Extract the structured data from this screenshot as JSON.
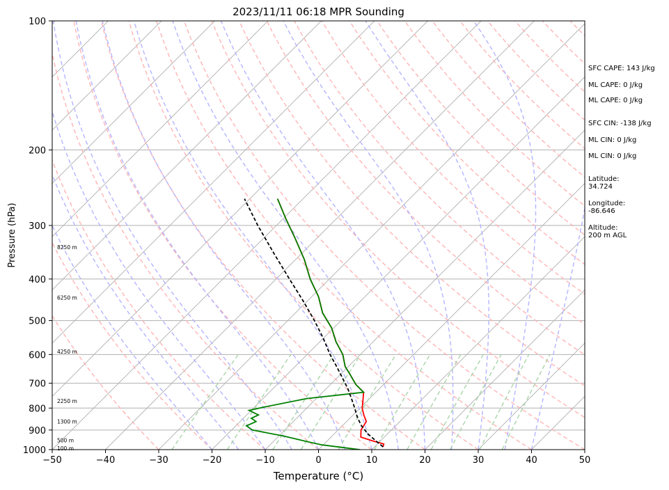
{
  "chart_data": {
    "type": "skew-t log-p sounding",
    "title": "2023/11/11 06:18 MPR Sounding",
    "xlabel": "Temperature (°C)",
    "ylabel": "Pressure (hPa)",
    "xlim": [
      -50,
      50
    ],
    "ylim": [
      1000,
      100
    ],
    "y_scale": "log",
    "x_ticks": [
      "−50",
      "−40",
      "−30",
      "−20",
      "−10",
      "0",
      "10",
      "20",
      "30",
      "40",
      "50"
    ],
    "y_ticks": [
      "100",
      "200",
      "300",
      "400",
      "500",
      "600",
      "700",
      "800",
      "900",
      "1000"
    ],
    "height_labels": [
      {
        "text": "100 m",
        "p": 993
      },
      {
        "text": "500 m",
        "p": 950
      },
      {
        "text": "1300 m",
        "p": 860
      },
      {
        "text": "2250 m",
        "p": 770
      },
      {
        "text": "4250 m",
        "p": 590
      },
      {
        "text": "6250 m",
        "p": 442
      },
      {
        "text": "8250 m",
        "p": 337
      }
    ],
    "series": [
      {
        "name": "Temperature",
        "color": "#ff0000",
        "points": [
          {
            "p": 985,
            "t": 11.6
          },
          {
            "p": 970,
            "t": 11.2
          },
          {
            "p": 955,
            "t": 8.7
          },
          {
            "p": 935,
            "t": 5.6
          },
          {
            "p": 900,
            "t": 4.3
          },
          {
            "p": 860,
            "t": 3.7
          },
          {
            "p": 830,
            "t": 2.0
          },
          {
            "p": 800,
            "t": 0.4
          },
          {
            "p": 770,
            "t": -0.8
          },
          {
            "p": 735,
            "t": -2.3
          },
          {
            "p": 705,
            "t": -5.2
          },
          {
            "p": 670,
            "t": -8.0
          },
          {
            "p": 640,
            "t": -10.6
          },
          {
            "p": 600,
            "t": -13.3
          },
          {
            "p": 560,
            "t": -17.0
          },
          {
            "p": 520,
            "t": -20.4
          },
          {
            "p": 480,
            "t": -24.9
          },
          {
            "p": 440,
            "t": -28.7
          },
          {
            "p": 400,
            "t": -33.6
          },
          {
            "p": 360,
            "t": -38.4
          },
          {
            "p": 320,
            "t": -44.3
          },
          {
            "p": 290,
            "t": -49.4
          },
          {
            "p": 260,
            "t": -54.8
          }
        ]
      },
      {
        "name": "Dewpoint",
        "color": "#008000",
        "points": [
          {
            "p": 1000,
            "t": 7.8
          },
          {
            "p": 990,
            "t": 4.6
          },
          {
            "p": 975,
            "t": -0.2
          },
          {
            "p": 960,
            "t": -3.2
          },
          {
            "p": 930,
            "t": -9.0
          },
          {
            "p": 900,
            "t": -16.1
          },
          {
            "p": 880,
            "t": -18.0
          },
          {
            "p": 860,
            "t": -17.0
          },
          {
            "p": 845,
            "t": -18.5
          },
          {
            "p": 830,
            "t": -17.8
          },
          {
            "p": 810,
            "t": -20.4
          },
          {
            "p": 795,
            "t": -18.1
          },
          {
            "p": 760,
            "t": -11.8
          },
          {
            "p": 735,
            "t": -2.3
          },
          {
            "p": 705,
            "t": -5.2
          },
          {
            "p": 670,
            "t": -8.0
          },
          {
            "p": 640,
            "t": -10.6
          },
          {
            "p": 600,
            "t": -13.3
          },
          {
            "p": 560,
            "t": -17.0
          },
          {
            "p": 520,
            "t": -20.4
          },
          {
            "p": 480,
            "t": -24.9
          },
          {
            "p": 440,
            "t": -28.7
          },
          {
            "p": 400,
            "t": -33.6
          },
          {
            "p": 360,
            "t": -38.4
          },
          {
            "p": 320,
            "t": -44.3
          },
          {
            "p": 290,
            "t": -49.4
          },
          {
            "p": 260,
            "t": -54.8
          }
        ]
      },
      {
        "name": "Parcel profile",
        "color": "#000000",
        "dashed": true,
        "points": [
          {
            "p": 985,
            "t": 11.6
          },
          {
            "p": 960,
            "t": 9.6
          },
          {
            "p": 920,
            "t": 6.4
          },
          {
            "p": 880,
            "t": 3.6
          },
          {
            "p": 840,
            "t": 1.2
          },
          {
            "p": 800,
            "t": -1.0
          },
          {
            "p": 760,
            "t": -3.4
          },
          {
            "p": 720,
            "t": -6.0
          },
          {
            "p": 680,
            "t": -9.0
          },
          {
            "p": 640,
            "t": -12.2
          },
          {
            "p": 600,
            "t": -15.7
          },
          {
            "p": 550,
            "t": -20.0
          },
          {
            "p": 500,
            "t": -25.0
          },
          {
            "p": 450,
            "t": -30.8
          },
          {
            "p": 400,
            "t": -37.5
          },
          {
            "p": 350,
            "t": -45.0
          },
          {
            "p": 300,
            "t": -53.5
          },
          {
            "p": 260,
            "t": -61.0
          }
        ]
      }
    ],
    "reference_lines": {
      "isotherms_color": "#b0b0b0",
      "dry_adiabats_color": "#ffb4b4",
      "moist_adiabats_color": "#b4b4ff",
      "mixing_ratio_color": "#a8d4a8"
    }
  },
  "side_panel": {
    "sfc_cape": "SFC CAPE: 143 J/kg",
    "ml_cape_1": "ML CAPE: 0 J/kg",
    "ml_cape_2": "ML CAPE: 0 J/kg",
    "sfc_cin": "SFC CIN: -138 J/kg",
    "ml_cin_1": "ML CIN: 0 J/kg",
    "ml_cin_2": "ML CIN: 0 J/kg",
    "latitude_label": "Latitude:",
    "latitude_value": "34.724",
    "longitude_label": "Longitude:",
    "longitude_value": "-86.646",
    "altitude_label": "Altitude:",
    "altitude_value": "200 m AGL"
  }
}
